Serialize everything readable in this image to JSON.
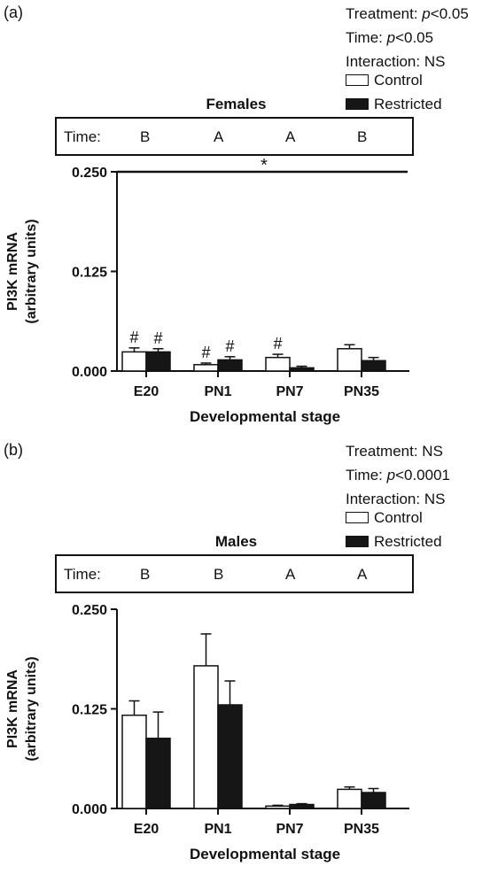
{
  "figure": {
    "panels": [
      {
        "label": "(a)",
        "stats": [
          "Treatment: p<0.05",
          "Time: p<0.05",
          "Interaction: NS"
        ],
        "legend": [
          "Control",
          "Restricted"
        ],
        "sex": "Females",
        "time_label": "Time:",
        "time_groups": [
          "B",
          "A",
          "A",
          "B"
        ]
      },
      {
        "label": "(b)",
        "stats": [
          "Treatment: NS",
          "Time: p<0.0001",
          "Interaction: NS"
        ],
        "legend": [
          "Control",
          "Restricted"
        ],
        "sex": "Males",
        "time_label": "Time:",
        "time_groups": [
          "B",
          "B",
          "A",
          "A"
        ]
      }
    ]
  },
  "chart_data": [
    {
      "type": "bar",
      "title": "Females",
      "categories": [
        "E20",
        "PN1",
        "PN7",
        "PN35"
      ],
      "xlabel": "Developmental stage",
      "ylabel": "PI3K mRNA\n(arbitrary units)",
      "ylim": [
        0,
        0.25
      ],
      "yticks": [
        "0.000",
        "0.125",
        "0.250"
      ],
      "series": [
        {
          "name": "Control",
          "color": "#ffffff",
          "values": [
            0.024,
            0.008,
            0.017,
            0.028
          ],
          "errors": [
            0.005,
            0.002,
            0.004,
            0.005
          ]
        },
        {
          "name": "Restricted",
          "color": "#161616",
          "values": [
            0.024,
            0.014,
            0.004,
            0.013
          ],
          "errors": [
            0.004,
            0.004,
            0.002,
            0.004
          ]
        }
      ],
      "annotations": {
        "significance_line": "*",
        "hash": "#",
        "hash_marks": [
          [
            true,
            true
          ],
          [
            true,
            true
          ],
          [
            true,
            false
          ],
          [
            false,
            false
          ]
        ]
      }
    },
    {
      "type": "bar",
      "title": "Males",
      "categories": [
        "E20",
        "PN1",
        "PN7",
        "PN35"
      ],
      "xlabel": "Developmental stage",
      "ylabel": "PI3K mRNA\n(arbitrary units)",
      "ylim": [
        0,
        0.25
      ],
      "yticks": [
        "0.000",
        "0.125",
        "0.250"
      ],
      "series": [
        {
          "name": "Control",
          "color": "#ffffff",
          "values": [
            0.117,
            0.179,
            0.003,
            0.024
          ],
          "errors": [
            0.018,
            0.04,
            0.001,
            0.003
          ]
        },
        {
          "name": "Restricted",
          "color": "#161616",
          "values": [
            0.088,
            0.13,
            0.005,
            0.02
          ],
          "errors": [
            0.033,
            0.03,
            0.001,
            0.005
          ]
        }
      ]
    }
  ]
}
